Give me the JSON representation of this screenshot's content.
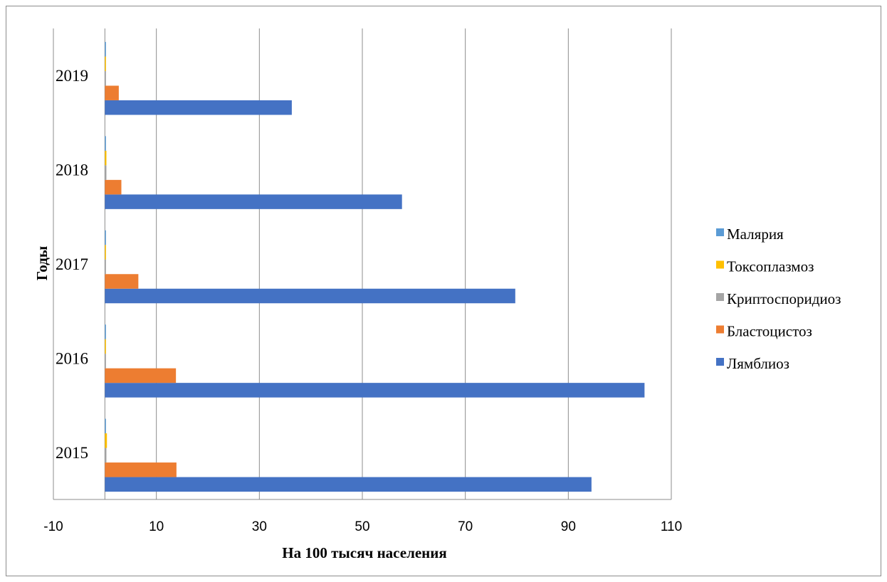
{
  "chart_data": {
    "type": "bar",
    "orientation": "horizontal",
    "title": "",
    "xlabel": "На 100 тысяч населения",
    "ylabel": "Годы",
    "xlim": [
      -10,
      110
    ],
    "xticks": [
      "-10",
      "10",
      "30",
      "50",
      "70",
      "90",
      "110"
    ],
    "categories": [
      "2015",
      "2016",
      "2017",
      "2018",
      "2019"
    ],
    "grid": true,
    "legend_position": "right",
    "series": [
      {
        "name": "Лямблиоз",
        "color": "#4472C4",
        "values": [
          94.5,
          104.8,
          79.7,
          57.7,
          36.3
        ]
      },
      {
        "name": "Бластоцистоз",
        "color": "#ED7D31",
        "values": [
          13.9,
          13.8,
          6.5,
          3.2,
          2.7
        ]
      },
      {
        "name": "Криптоспоридиоз",
        "color": "#A5A5A5",
        "values": [
          0.3,
          0.1,
          0.05,
          0.3,
          0.05
        ]
      },
      {
        "name": "Токсоплазмоз",
        "color": "#FFC000",
        "values": [
          0.4,
          0.2,
          0.1,
          0.3,
          0.1
        ]
      },
      {
        "name": "Малярия",
        "color": "#5B9BD5",
        "values": [
          0.2,
          0.2,
          0.05,
          0.1,
          0.05
        ]
      }
    ],
    "legend_order": [
      "Малярия",
      "Токсоплазмоз",
      "Криптоспоридиоз",
      "Бластоцистоз",
      "Лямблиоз"
    ]
  }
}
